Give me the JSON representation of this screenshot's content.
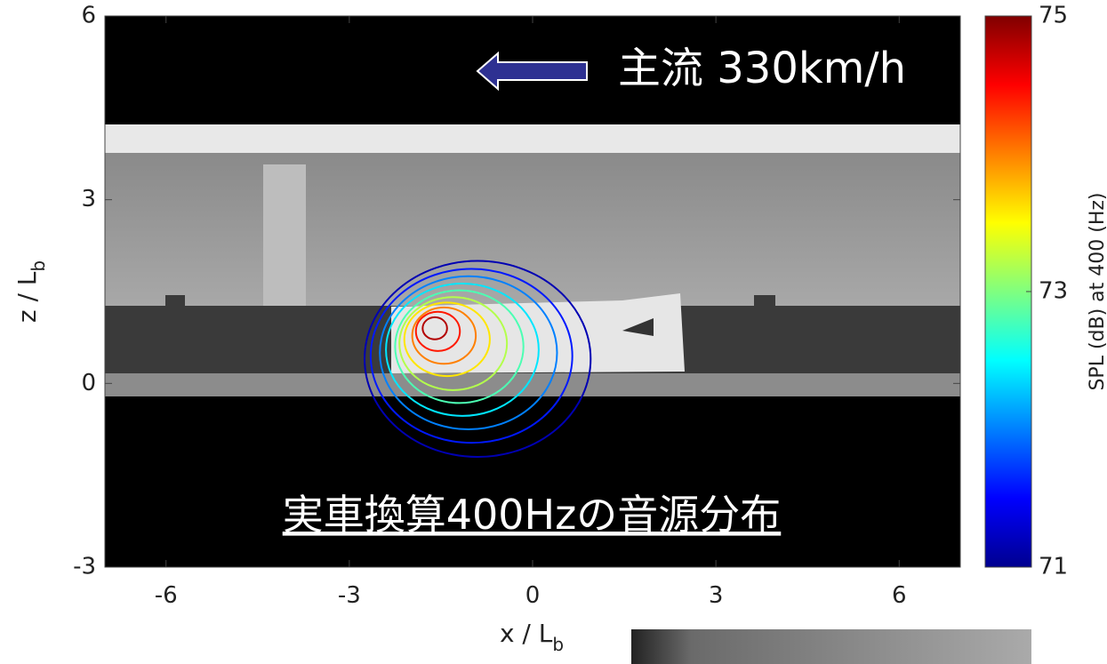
{
  "chart_data": {
    "type": "contour",
    "xlabel": [
      "x / L",
      "b"
    ],
    "ylabel": [
      "z / L",
      "b"
    ],
    "xlim": [
      -7,
      7
    ],
    "ylim": [
      -3,
      6
    ],
    "xticks": [
      -6,
      -3,
      0,
      3,
      6
    ],
    "yticks": [
      -3,
      0,
      3,
      6
    ],
    "clim": [
      71,
      75
    ],
    "cticks": [
      71,
      73,
      75
    ],
    "colorbar_label": "SPL (dB) at 400 (Hz)",
    "colormap": "jet",
    "contours": [
      {
        "level": 71.2,
        "cx": -0.9,
        "cz": 0.4,
        "rx": 1.85,
        "rz": 1.6
      },
      {
        "level": 71.6,
        "cx": -1.0,
        "cz": 0.45,
        "rx": 1.65,
        "rz": 1.42
      },
      {
        "level": 72.0,
        "cx": -1.05,
        "cz": 0.5,
        "rx": 1.45,
        "rz": 1.25
      },
      {
        "level": 72.4,
        "cx": -1.15,
        "cz": 0.55,
        "rx": 1.25,
        "rz": 1.08
      },
      {
        "level": 72.8,
        "cx": -1.2,
        "cz": 0.6,
        "rx": 1.05,
        "rz": 0.92
      },
      {
        "level": 73.2,
        "cx": -1.3,
        "cz": 0.65,
        "rx": 0.88,
        "rz": 0.76
      },
      {
        "level": 73.6,
        "cx": -1.4,
        "cz": 0.72,
        "rx": 0.7,
        "rz": 0.6
      },
      {
        "level": 74.0,
        "cx": -1.45,
        "cz": 0.78,
        "rx": 0.52,
        "rz": 0.46
      },
      {
        "level": 74.4,
        "cx": -1.55,
        "cz": 0.85,
        "rx": 0.36,
        "rz": 0.32
      },
      {
        "level": 74.8,
        "cx": -1.6,
        "cz": 0.9,
        "rx": 0.2,
        "rz": 0.18
      }
    ],
    "annotations": [
      "主流 330km/h",
      "実車換算400Hzの音源分布"
    ]
  }
}
